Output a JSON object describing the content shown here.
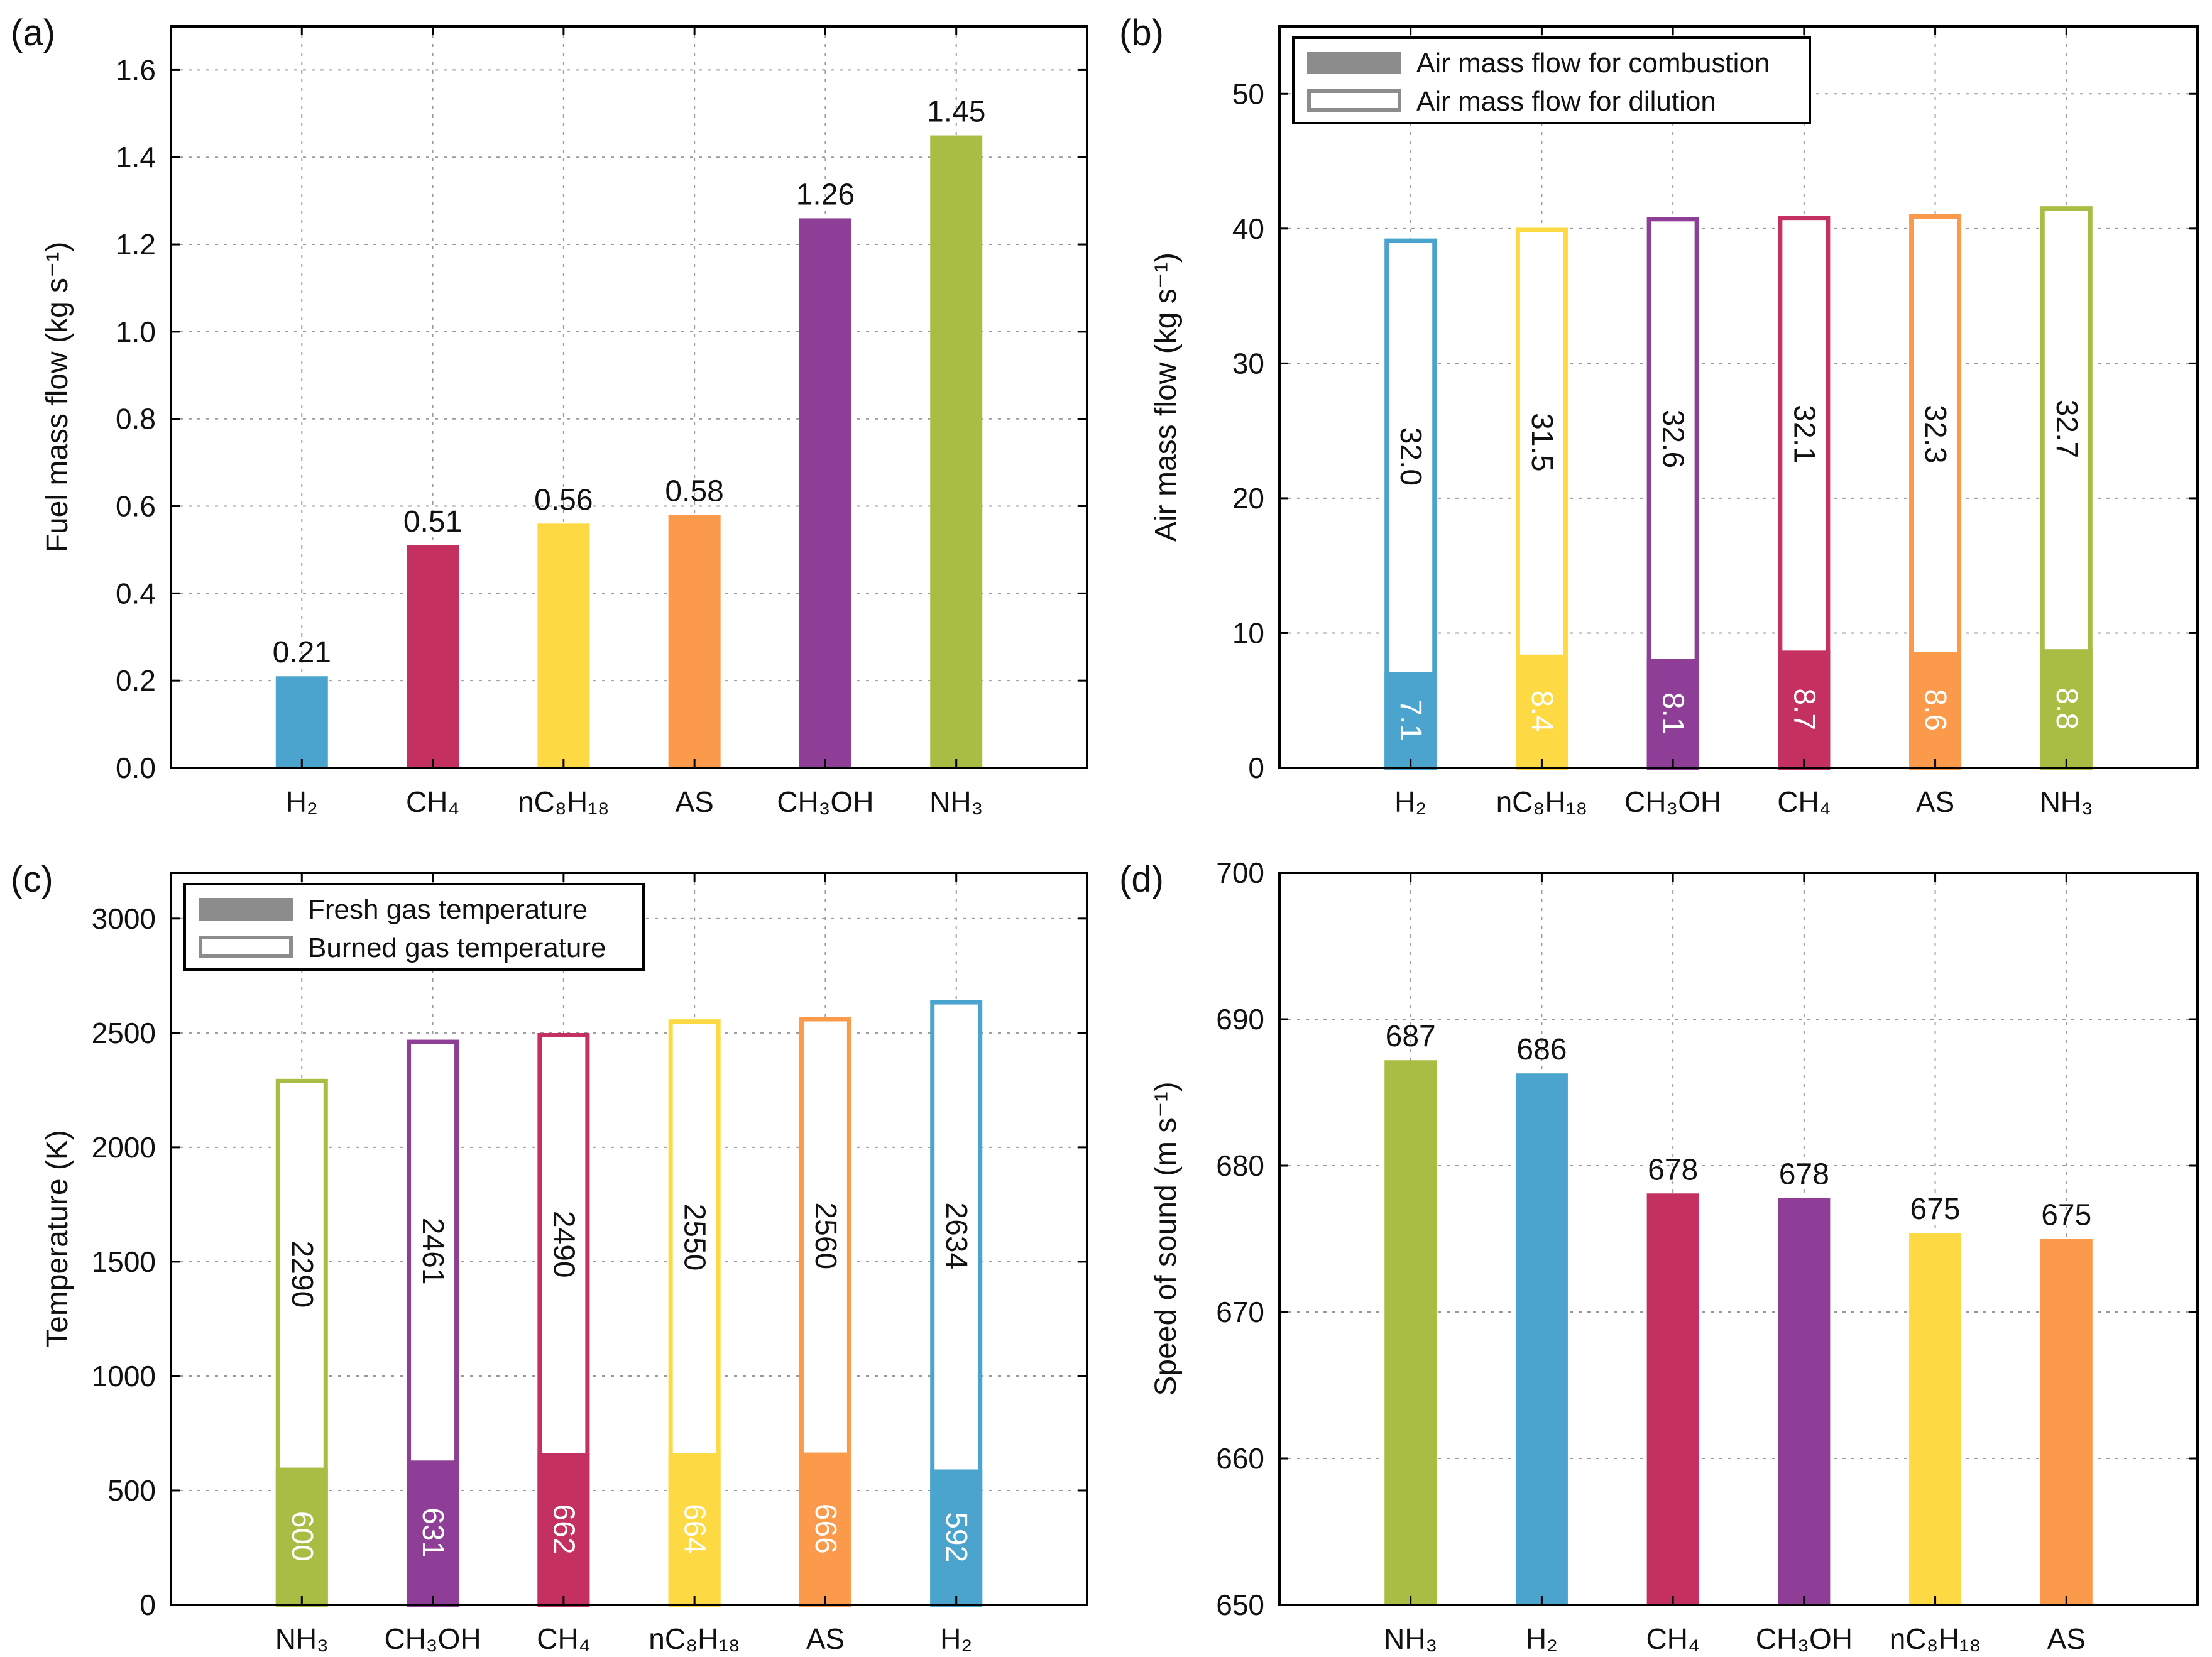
{
  "colors": {
    "H2": "#4BA4CD",
    "CH4": "#C4305F",
    "nC8H18": "#FDD944",
    "AS": "#FA9A4A",
    "CH3OH": "#8E3E97",
    "NH3": "#A9BD44"
  },
  "chart_data": [
    {
      "id": "a",
      "panel_label": "(a)",
      "type": "bar",
      "title": "",
      "xlabel": "",
      "ylabel": "Fuel mass flow (kg s⁻¹)",
      "ylim": [
        0,
        1.7
      ],
      "yticks": [
        "0.0",
        "0.2",
        "0.4",
        "0.6",
        "0.8",
        "1.0",
        "1.2",
        "1.4",
        "1.6"
      ],
      "ytick_values": [
        0,
        0.2,
        0.4,
        0.6,
        0.8,
        1.0,
        1.2,
        1.4,
        1.6
      ],
      "grid": true,
      "categories": [
        "H₂",
        "CH₄",
        "nC₈H₁₈",
        "AS",
        "CH₃OH",
        "NH₃"
      ],
      "color_keys": [
        "H2",
        "CH4",
        "nC8H18",
        "AS",
        "CH3OH",
        "NH3"
      ],
      "values": [
        0.21,
        0.51,
        0.56,
        0.58,
        1.26,
        1.45
      ],
      "value_labels": [
        "0.21",
        "0.51",
        "0.56",
        "0.58",
        "1.26",
        "1.45"
      ]
    },
    {
      "id": "b",
      "panel_label": "(b)",
      "type": "bar",
      "stacked": true,
      "title": "",
      "xlabel": "",
      "ylabel": "Air mass flow (kg s⁻¹)",
      "ylim": [
        0,
        55
      ],
      "yticks": [
        "0",
        "10",
        "20",
        "30",
        "40",
        "50"
      ],
      "ytick_values": [
        0,
        10,
        20,
        30,
        40,
        50
      ],
      "grid": true,
      "legend_position": "top-left",
      "legend": [
        "Air mass flow for combustion",
        "Air mass flow for dilution"
      ],
      "categories": [
        "H₂",
        "nC₈H₁₈",
        "CH₃OH",
        "CH₄",
        "AS",
        "NH₃"
      ],
      "color_keys": [
        "H2",
        "nC8H18",
        "CH3OH",
        "CH4",
        "AS",
        "NH3"
      ],
      "series": [
        {
          "name": "Air mass flow for combustion",
          "style": "filled",
          "values": [
            7.1,
            8.4,
            8.1,
            8.7,
            8.6,
            8.8
          ],
          "value_labels": [
            "7.1",
            "8.4",
            "8.1",
            "8.7",
            "8.6",
            "8.8"
          ]
        },
        {
          "name": "Air mass flow for dilution",
          "style": "outline",
          "values": [
            32.0,
            31.5,
            32.6,
            32.1,
            32.3,
            32.7
          ],
          "value_labels": [
            "32.0",
            "31.5",
            "32.6",
            "32.1",
            "32.3",
            "32.7"
          ]
        }
      ]
    },
    {
      "id": "c",
      "panel_label": "(c)",
      "type": "bar",
      "overlaid": true,
      "title": "",
      "xlabel": "",
      "ylabel": "Temperature (K)",
      "ylim": [
        0,
        3200
      ],
      "yticks": [
        "0",
        "500",
        "1000",
        "1500",
        "2000",
        "2500",
        "3000"
      ],
      "ytick_values": [
        0,
        500,
        1000,
        1500,
        2000,
        2500,
        3000
      ],
      "grid": true,
      "legend_position": "top-left",
      "legend": [
        "Fresh gas temperature",
        "Burned gas temperature"
      ],
      "categories": [
        "NH₃",
        "CH₃OH",
        "CH₄",
        "nC₈H₁₈",
        "AS",
        "H₂"
      ],
      "color_keys": [
        "NH3",
        "CH3OH",
        "CH4",
        "nC8H18",
        "AS",
        "H2"
      ],
      "series": [
        {
          "name": "Fresh gas temperature",
          "style": "filled",
          "values": [
            600,
            631,
            662,
            664,
            666,
            592
          ],
          "value_labels": [
            "600",
            "631",
            "662",
            "664",
            "666",
            "592"
          ]
        },
        {
          "name": "Burned gas temperature",
          "style": "outline",
          "values": [
            2290,
            2461,
            2490,
            2550,
            2560,
            2634
          ],
          "value_labels": [
            "2290",
            "2461",
            "2490",
            "2550",
            "2560",
            "2634"
          ]
        }
      ]
    },
    {
      "id": "d",
      "panel_label": "(d)",
      "type": "bar",
      "title": "",
      "xlabel": "",
      "ylabel": "Speed of sound (m s⁻¹)",
      "ylim": [
        650,
        700
      ],
      "yticks": [
        "650",
        "660",
        "670",
        "680",
        "690",
        "700"
      ],
      "ytick_values": [
        650,
        660,
        670,
        680,
        690,
        700
      ],
      "grid": true,
      "categories": [
        "NH₃",
        "H₂",
        "CH₄",
        "CH₃OH",
        "nC₈H₁₈",
        "AS"
      ],
      "color_keys": [
        "NH3",
        "H2",
        "CH4",
        "CH3OH",
        "nC8H18",
        "AS"
      ],
      "values": [
        687.2,
        686.3,
        678.1,
        677.8,
        675.4,
        675.0
      ],
      "value_labels": [
        "687",
        "686",
        "678",
        "678",
        "675",
        "675"
      ]
    }
  ]
}
